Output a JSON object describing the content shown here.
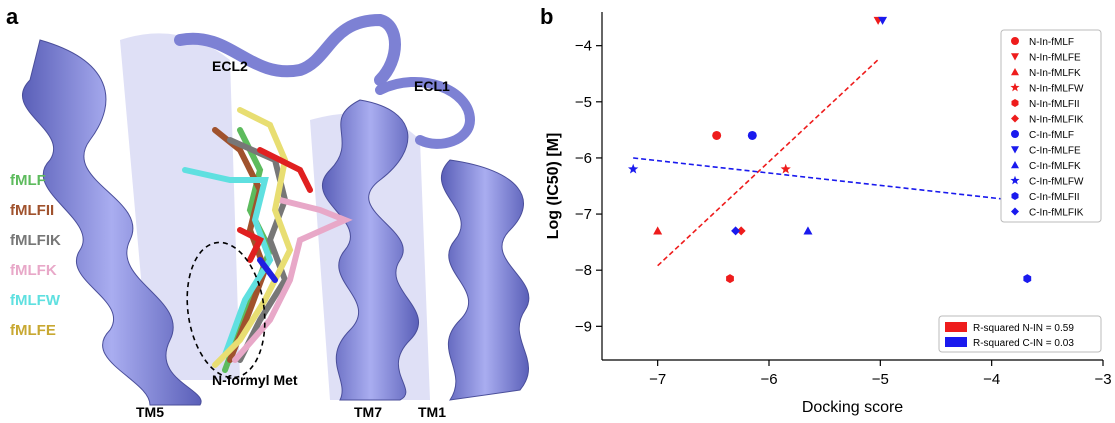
{
  "panel_a": {
    "letter": "a",
    "ligands": [
      {
        "label": "fMLF",
        "color": "#5dbb5d"
      },
      {
        "label": "fMLFII",
        "color": "#a0522d"
      },
      {
        "label": "fMLFIK",
        "color": "#777777"
      },
      {
        "label": "fMLFK",
        "color": "#e8a8c8"
      },
      {
        "label": "fMLFW",
        "color": "#5fe0e0"
      },
      {
        "label": "fMLFE",
        "color": "#c8a832"
      }
    ],
    "structure_labels": {
      "ecl2": "ECL2",
      "ecl1": "ECL1",
      "nformyl": "N-formyl Met",
      "tm5": "TM5",
      "tm7": "TM7",
      "tm1": "TM1"
    },
    "helix_color": "#8a8fdc"
  },
  "panel_b": {
    "letter": "b"
  },
  "chart_data": {
    "type": "scatter",
    "xlabel": "Docking score",
    "ylabel": "Log (IC50) [M]",
    "xlim": [
      -7.5,
      -3
    ],
    "ylim": [
      -9.6,
      -3.4
    ],
    "xticks": [
      -7,
      -6,
      -5,
      -4,
      -3
    ],
    "yticks": [
      -4,
      -5,
      -6,
      -7,
      -8,
      -9
    ],
    "series": [
      {
        "name": "N-In-fMLF",
        "color": "#ee1c1c",
        "marker": "circle",
        "x": -6.47,
        "y": -5.6
      },
      {
        "name": "N-In-fMLFE",
        "color": "#ee1c1c",
        "marker": "triangle-down",
        "x": -5.02,
        "y": -3.55
      },
      {
        "name": "N-In-fMLFK",
        "color": "#ee1c1c",
        "marker": "triangle-up",
        "x": -7.0,
        "y": -7.3
      },
      {
        "name": "N-In-fMLFW",
        "color": "#ee1c1c",
        "marker": "star",
        "x": -5.85,
        "y": -6.2
      },
      {
        "name": "N-In-fMLFII",
        "color": "#ee1c1c",
        "marker": "hexagon",
        "x": -6.35,
        "y": -8.15
      },
      {
        "name": "N-In-fMLFIK",
        "color": "#ee1c1c",
        "marker": "diamond",
        "x": -6.25,
        "y": -7.3
      },
      {
        "name": "C-In-fMLF",
        "color": "#1a1aee",
        "marker": "circle",
        "x": -6.15,
        "y": -5.6
      },
      {
        "name": "C-In-fMLFE",
        "color": "#1a1aee",
        "marker": "triangle-down",
        "x": -4.98,
        "y": -3.55
      },
      {
        "name": "C-In-fMLFK",
        "color": "#1a1aee",
        "marker": "triangle-up",
        "x": -5.65,
        "y": -7.3
      },
      {
        "name": "C-In-fMLFW",
        "color": "#1a1aee",
        "marker": "star",
        "x": -7.22,
        "y": -6.2
      },
      {
        "name": "C-In-fMLFII",
        "color": "#1a1aee",
        "marker": "hexagon",
        "x": -3.68,
        "y": -8.15
      },
      {
        "name": "C-In-fMLFIK",
        "color": "#1a1aee",
        "marker": "diamond",
        "x": -6.3,
        "y": -7.3
      }
    ],
    "fit_lines": [
      {
        "name": "R-squared N-IN = 0.59",
        "color": "#ee1c1c",
        "x": [
          -7.0,
          -5.02
        ],
        "y": [
          -7.92,
          -4.25
        ]
      },
      {
        "name": "R-squared C-IN = 0.03",
        "color": "#1a1aee",
        "x": [
          -7.22,
          -3.68
        ],
        "y": [
          -6.0,
          -6.78
        ]
      }
    ],
    "legend_position": "top-right",
    "fit_legend_position": "bottom-right"
  }
}
